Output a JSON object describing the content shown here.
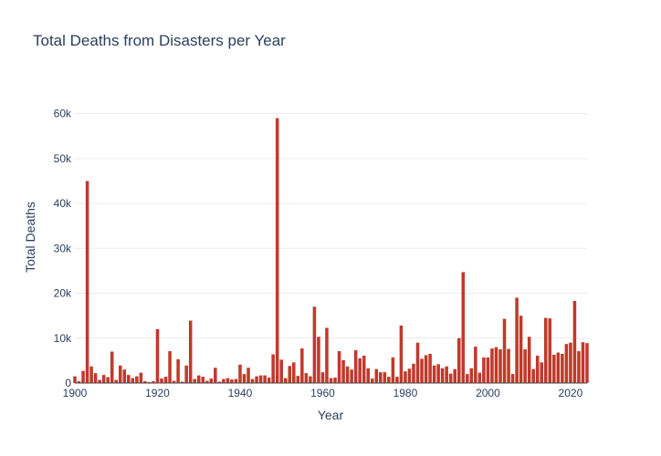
{
  "chart_data": {
    "type": "bar",
    "title": "Total Deaths from Disasters per Year",
    "xlabel": "Year",
    "ylabel": "Total Deaths",
    "bar_color": "#c0392b",
    "text_color": "#2a3f5f",
    "grid_color": "#e9ecf1",
    "xlim": [
      1900,
      2024
    ],
    "ylim": [
      0,
      65000
    ],
    "grid": true,
    "x_ticks": [
      1900,
      1920,
      1940,
      1960,
      1980,
      2000,
      2020
    ],
    "x_tick_labels": [
      "1900",
      "1920",
      "1940",
      "1960",
      "1980",
      "2000",
      "2020"
    ],
    "y_ticks": [
      0,
      10000,
      20000,
      30000,
      40000,
      50000,
      60000
    ],
    "y_tick_labels": [
      "0",
      "10k",
      "20k",
      "30k",
      "40k",
      "50k",
      "60k"
    ],
    "x": [
      1900,
      1901,
      1902,
      1903,
      1904,
      1905,
      1906,
      1907,
      1908,
      1909,
      1910,
      1911,
      1912,
      1913,
      1914,
      1915,
      1916,
      1917,
      1918,
      1919,
      1920,
      1921,
      1922,
      1923,
      1924,
      1925,
      1926,
      1927,
      1928,
      1929,
      1930,
      1931,
      1932,
      1933,
      1934,
      1935,
      1936,
      1937,
      1938,
      1939,
      1940,
      1941,
      1942,
      1943,
      1944,
      1945,
      1946,
      1947,
      1948,
      1949,
      1950,
      1951,
      1952,
      1953,
      1954,
      1955,
      1956,
      1957,
      1958,
      1959,
      1960,
      1961,
      1962,
      1963,
      1964,
      1965,
      1966,
      1967,
      1968,
      1969,
      1970,
      1971,
      1972,
      1973,
      1974,
      1975,
      1976,
      1977,
      1978,
      1979,
      1980,
      1981,
      1982,
      1983,
      1984,
      1985,
      1986,
      1987,
      1988,
      1989,
      1990,
      1991,
      1992,
      1993,
      1994,
      1995,
      1996,
      1997,
      1998,
      1999,
      2000,
      2001,
      2002,
      2003,
      2004,
      2005,
      2006,
      2007,
      2008,
      2009,
      2010,
      2011,
      2012,
      2013,
      2014,
      2015,
      2016,
      2017,
      2018,
      2019,
      2020,
      2021,
      2022,
      2023,
      2024
    ],
    "values": [
      1500,
      400,
      2700,
      45000,
      3700,
      2200,
      700,
      1800,
      1300,
      7000,
      700,
      3900,
      3000,
      1800,
      1100,
      1500,
      2300,
      400,
      200,
      400,
      12000,
      1000,
      1400,
      7100,
      500,
      5300,
      300,
      3900,
      13900,
      900,
      1700,
      1400,
      500,
      1000,
      3400,
      300,
      900,
      1100,
      800,
      900,
      4100,
      2000,
      3400,
      900,
      1500,
      1700,
      1700,
      1200,
      6400,
      59000,
      5200,
      1100,
      3800,
      4600,
      1600,
      7700,
      2200,
      1500,
      17000,
      10300,
      2400,
      12300,
      1100,
      1200,
      7100,
      5100,
      3700,
      3000,
      7300,
      5500,
      6100,
      3300,
      1000,
      3100,
      2400,
      2400,
      1400,
      5700,
      1400,
      12800,
      2600,
      3200,
      4300,
      9000,
      5400,
      6200,
      6500,
      3900,
      4200,
      3300,
      3700,
      2100,
      3100,
      10000,
      24700,
      2000,
      3300,
      8100,
      2300,
      5700,
      5700,
      7700,
      8000,
      7500,
      14300,
      7600,
      2000,
      19000,
      15000,
      7500,
      10300,
      3100,
      6100,
      4600,
      14500,
      14400,
      6300,
      6800,
      6500,
      8700,
      9000,
      18300,
      7100,
      9100,
      8900
    ]
  }
}
